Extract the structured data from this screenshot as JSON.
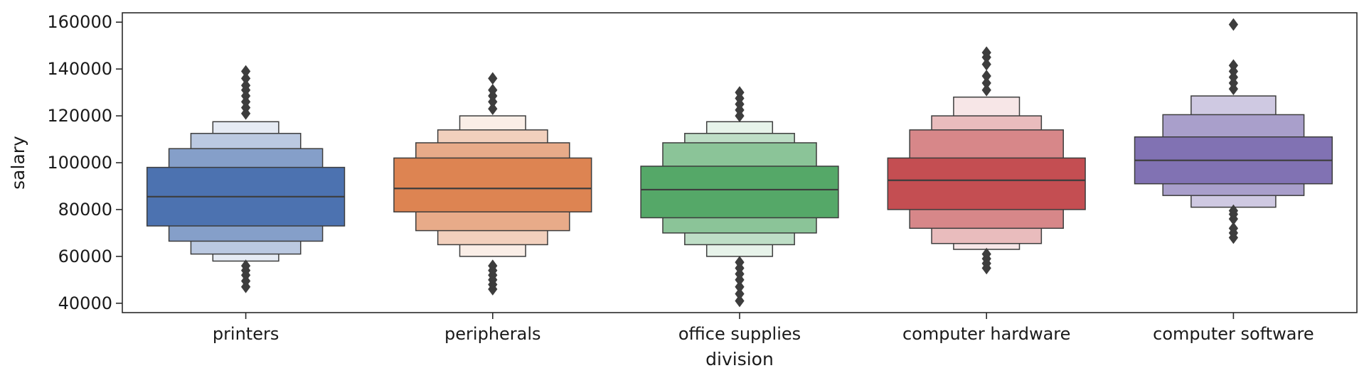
{
  "chart_data": {
    "type": "boxen",
    "xlabel": "division",
    "ylabel": "salary",
    "ylim": [
      36000,
      164000
    ],
    "yticks": [
      40000,
      60000,
      80000,
      100000,
      120000,
      140000,
      160000
    ],
    "categories": [
      "printers",
      "peripherals",
      "office supplies",
      "computer hardware",
      "computer software"
    ],
    "colors": [
      "#4c72b0",
      "#dd8452",
      "#55a868",
      "#c44e52",
      "#8172b3"
    ],
    "edge_color": "#3d3d3d",
    "grid": false,
    "legend": "none",
    "boxes": [
      {
        "category": "printers",
        "median": 85500,
        "levels": [
          [
            73000,
            98000
          ],
          [
            66500,
            106000
          ],
          [
            61000,
            112500
          ],
          [
            58000,
            117500
          ]
        ],
        "outliers": [
          47000,
          49500,
          52000,
          54000,
          56000,
          121000,
          123500,
          126000,
          128500,
          131000,
          133000,
          136000,
          139000
        ]
      },
      {
        "category": "peripherals",
        "median": 89000,
        "levels": [
          [
            79000,
            102000
          ],
          [
            71000,
            108500
          ],
          [
            65000,
            114000
          ],
          [
            60000,
            120000
          ]
        ],
        "outliers": [
          46000,
          48000,
          50000,
          52000,
          54000,
          56000,
          123000,
          126000,
          128500,
          131000,
          136000
        ]
      },
      {
        "category": "office supplies",
        "median": 88500,
        "levels": [
          [
            76500,
            98500
          ],
          [
            70000,
            108500
          ],
          [
            65000,
            112500
          ],
          [
            60000,
            117500
          ]
        ],
        "outliers": [
          41000,
          44000,
          47000,
          50000,
          52500,
          55000,
          57500,
          120000,
          122500,
          125000,
          127500,
          130000
        ]
      },
      {
        "category": "computer hardware",
        "median": 92500,
        "levels": [
          [
            80000,
            102000
          ],
          [
            72000,
            114000
          ],
          [
            65500,
            120000
          ],
          [
            63000,
            128000
          ]
        ],
        "outliers": [
          55000,
          57000,
          59000,
          61000,
          131000,
          134000,
          137000,
          142000,
          145000,
          147000
        ]
      },
      {
        "category": "computer software",
        "median": 101000,
        "levels": [
          [
            91000,
            111000
          ],
          [
            86000,
            120500
          ],
          [
            81000,
            128500
          ]
        ],
        "outliers": [
          68000,
          70000,
          72000,
          76000,
          78000,
          79500,
          131500,
          134000,
          136500,
          139000,
          141500,
          159000
        ]
      }
    ]
  }
}
